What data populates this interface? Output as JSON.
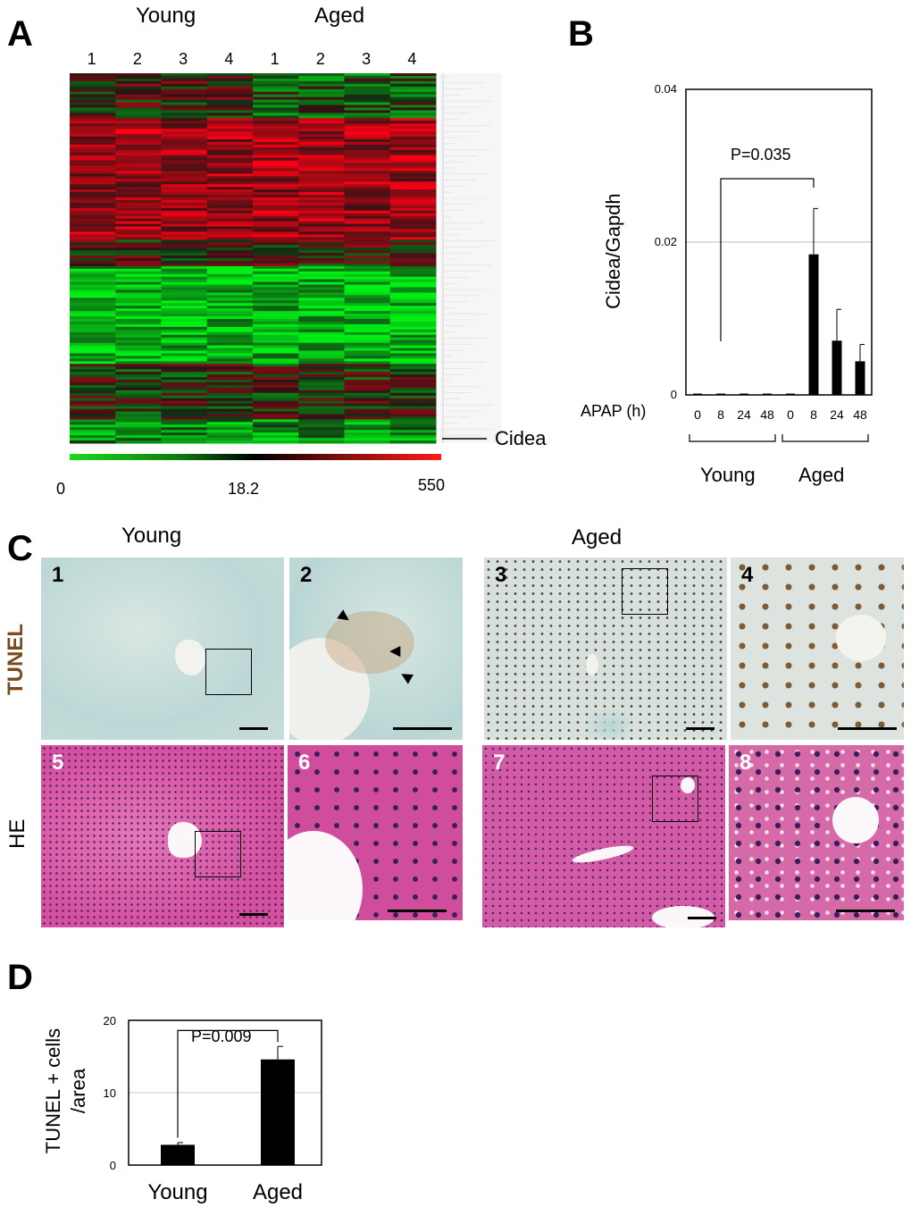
{
  "panels": {
    "A": {
      "letter": "A",
      "group_labels": [
        "Young",
        "Aged"
      ],
      "lane_labels": [
        "1",
        "2",
        "3",
        "4",
        "1",
        "2",
        "3",
        "4"
      ],
      "gene_label": "Cidea",
      "scale_labels": [
        "0",
        "18.2",
        "550"
      ],
      "colors": {
        "low": "#1fd81f",
        "mid": "#000000",
        "high": "#ff1a1a"
      }
    },
    "B": {
      "letter": "B",
      "ylabel": "Cidea/Gapdh",
      "xlabel": "APAP (h)",
      "pvalue": "P=0.035",
      "groups": [
        "Young",
        "Aged"
      ]
    },
    "C": {
      "letter": "C",
      "group_labels": [
        "Young",
        "Aged"
      ],
      "row_labels": [
        "TUNEL",
        "HE"
      ],
      "image_numbers": [
        "1",
        "2",
        "3",
        "4",
        "5",
        "6",
        "7",
        "8"
      ],
      "colors": {
        "tunel_label": "#7a4a1e",
        "tunel_bg": "#cfe0dc",
        "he_bg": "#d64fa0"
      }
    },
    "D": {
      "letter": "D",
      "ylabel": "TUNEL + cells /area",
      "pvalue": "P=0.009"
    }
  },
  "chart_data": [
    {
      "id": "B",
      "type": "bar",
      "categories": [
        "0",
        "8",
        "24",
        "48",
        "0",
        "8",
        "24",
        "48"
      ],
      "groups": [
        "Young",
        "Young",
        "Young",
        "Young",
        "Aged",
        "Aged",
        "Aged",
        "Aged"
      ],
      "values": [
        0,
        0,
        0,
        0,
        0,
        0.0184,
        0.0071,
        0.0044
      ],
      "errors": [
        0,
        0,
        0,
        0,
        0,
        0.006,
        0.0041,
        0.0022
      ],
      "ylim": [
        0,
        0.04
      ],
      "yticks": [
        0,
        0.02,
        0.04
      ],
      "ytick_labels": [
        "0",
        "0.02",
        "0.04"
      ],
      "ylabel": "Cidea/Gapdh",
      "xlabel": "APAP (h)",
      "grid": true,
      "annotation": "P=0.035"
    },
    {
      "id": "D",
      "type": "bar",
      "categories": [
        "Young",
        "Aged"
      ],
      "values": [
        2.8,
        14.6
      ],
      "errors": [
        0.3,
        1.8
      ],
      "ylim": [
        0,
        20
      ],
      "yticks": [
        0,
        10,
        20
      ],
      "ytick_labels": [
        "0",
        "10",
        "20"
      ],
      "ylabel": "TUNEL + cells /area",
      "grid": true,
      "annotation": "P=0.009"
    }
  ]
}
